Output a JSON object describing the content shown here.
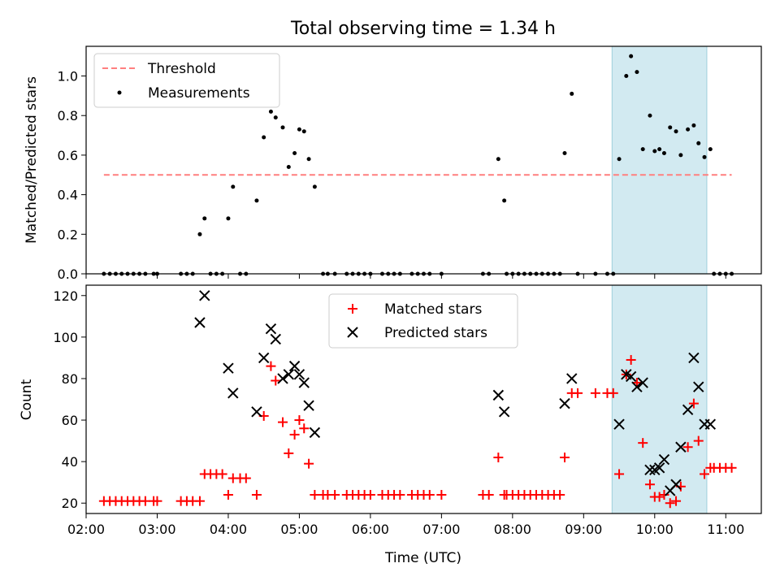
{
  "figure_title": "Total observing time = 1.34 h",
  "chart_data": [
    {
      "type": "scatter",
      "ylabel": "Matched/Predicted stars",
      "xlim": [
        "02:00",
        "11:30"
      ],
      "ylim": [
        0,
        1.15
      ],
      "yticks": [
        0.0,
        0.2,
        0.4,
        0.6,
        0.8,
        1.0
      ],
      "yticklabels": [
        "0.0",
        "0.2",
        "0.4",
        "0.6",
        "0.8",
        "1.0"
      ],
      "legend_position": "top-left",
      "shaded_span": [
        "09:24",
        "10:44"
      ],
      "shaded_color": "#add8e6",
      "threshold": {
        "name": "Threshold",
        "y": 0.5,
        "x": [
          "02:15",
          "11:05"
        ],
        "color": "#ff7f7f",
        "style": "dashed"
      },
      "series": [
        {
          "name": "Measurements",
          "color": "#000000",
          "marker": "dot",
          "points": [
            [
              "02:15",
              0
            ],
            [
              "02:20",
              0
            ],
            [
              "02:25",
              0
            ],
            [
              "02:30",
              0
            ],
            [
              "02:35",
              0
            ],
            [
              "02:40",
              0
            ],
            [
              "02:45",
              0
            ],
            [
              "02:50",
              0
            ],
            [
              "02:57",
              0
            ],
            [
              "03:00",
              0
            ],
            [
              "03:20",
              0
            ],
            [
              "03:25",
              0
            ],
            [
              "03:30",
              0
            ],
            [
              "03:36",
              0.2
            ],
            [
              "03:40",
              0.28
            ],
            [
              "03:45",
              0
            ],
            [
              "03:50",
              0
            ],
            [
              "03:55",
              0
            ],
            [
              "04:00",
              0.28
            ],
            [
              "04:04",
              0.44
            ],
            [
              "04:10",
              0
            ],
            [
              "04:15",
              0
            ],
            [
              "04:24",
              0.37
            ],
            [
              "04:30",
              0.69
            ],
            [
              "04:36",
              0.82
            ],
            [
              "04:40",
              0.79
            ],
            [
              "04:46",
              0.74
            ],
            [
              "04:51",
              0.54
            ],
            [
              "04:56",
              0.61
            ],
            [
              "05:00",
              0.73
            ],
            [
              "05:04",
              0.72
            ],
            [
              "05:08",
              0.58
            ],
            [
              "05:13",
              0.44
            ],
            [
              "05:20",
              0
            ],
            [
              "05:24",
              0
            ],
            [
              "05:30",
              0
            ],
            [
              "05:40",
              0
            ],
            [
              "05:45",
              0
            ],
            [
              "05:50",
              0
            ],
            [
              "05:55",
              0
            ],
            [
              "06:00",
              0
            ],
            [
              "06:10",
              0
            ],
            [
              "06:15",
              0
            ],
            [
              "06:20",
              0
            ],
            [
              "06:25",
              0
            ],
            [
              "06:35",
              0
            ],
            [
              "06:40",
              0
            ],
            [
              "06:45",
              0
            ],
            [
              "06:50",
              0
            ],
            [
              "07:00",
              0
            ],
            [
              "07:35",
              0
            ],
            [
              "07:40",
              0
            ],
            [
              "07:48",
              0.58
            ],
            [
              "07:53",
              0.37
            ],
            [
              "07:55",
              0
            ],
            [
              "08:00",
              0
            ],
            [
              "08:05",
              0
            ],
            [
              "08:10",
              0
            ],
            [
              "08:15",
              0
            ],
            [
              "08:20",
              0
            ],
            [
              "08:25",
              0
            ],
            [
              "08:30",
              0
            ],
            [
              "08:35",
              0
            ],
            [
              "08:40",
              0
            ],
            [
              "08:44",
              0.61
            ],
            [
              "08:50",
              0.91
            ],
            [
              "08:55",
              0
            ],
            [
              "09:10",
              0
            ],
            [
              "09:20",
              0
            ],
            [
              "09:25",
              0
            ],
            [
              "09:30",
              0.58
            ],
            [
              "09:36",
              1.0
            ],
            [
              "09:40",
              1.1
            ],
            [
              "09:45",
              1.02
            ],
            [
              "09:50",
              0.63
            ],
            [
              "09:56",
              0.8
            ],
            [
              "10:00",
              0.62
            ],
            [
              "10:04",
              0.63
            ],
            [
              "10:08",
              0.61
            ],
            [
              "10:13",
              0.74
            ],
            [
              "10:18",
              0.72
            ],
            [
              "10:22",
              0.6
            ],
            [
              "10:28",
              0.73
            ],
            [
              "10:33",
              0.75
            ],
            [
              "10:37",
              0.66
            ],
            [
              "10:42",
              0.59
            ],
            [
              "10:47",
              0.63
            ],
            [
              "10:50",
              0
            ],
            [
              "10:55",
              0
            ],
            [
              "11:00",
              0
            ],
            [
              "11:05",
              0
            ]
          ]
        }
      ]
    },
    {
      "type": "scatter",
      "ylabel": "Count",
      "xlabel": "Time (UTC)",
      "xlim": [
        "02:00",
        "11:30"
      ],
      "ylim": [
        15,
        125
      ],
      "xticks": [
        "02:00",
        "03:00",
        "04:00",
        "05:00",
        "06:00",
        "07:00",
        "08:00",
        "09:00",
        "10:00",
        "11:00"
      ],
      "yticks": [
        20,
        40,
        60,
        80,
        100,
        120
      ],
      "legend_position": "top-center",
      "shaded_span": [
        "09:24",
        "10:44"
      ],
      "shaded_color": "#add8e6",
      "series": [
        {
          "name": "Matched stars",
          "color": "#ff0000",
          "marker": "plus",
          "points": [
            [
              "02:15",
              21
            ],
            [
              "02:20",
              21
            ],
            [
              "02:25",
              21
            ],
            [
              "02:30",
              21
            ],
            [
              "02:35",
              21
            ],
            [
              "02:40",
              21
            ],
            [
              "02:45",
              21
            ],
            [
              "02:50",
              21
            ],
            [
              "02:57",
              21
            ],
            [
              "03:00",
              21
            ],
            [
              "03:20",
              21
            ],
            [
              "03:25",
              21
            ],
            [
              "03:30",
              21
            ],
            [
              "03:36",
              21
            ],
            [
              "03:40",
              34
            ],
            [
              "03:45",
              34
            ],
            [
              "03:50",
              34
            ],
            [
              "03:55",
              34
            ],
            [
              "04:00",
              24
            ],
            [
              "04:04",
              32
            ],
            [
              "04:10",
              32
            ],
            [
              "04:15",
              32
            ],
            [
              "04:24",
              24
            ],
            [
              "04:30",
              62
            ],
            [
              "04:36",
              86
            ],
            [
              "04:40",
              79
            ],
            [
              "04:46",
              59
            ],
            [
              "04:51",
              44
            ],
            [
              "04:56",
              53
            ],
            [
              "05:00",
              60
            ],
            [
              "05:04",
              56
            ],
            [
              "05:08",
              39
            ],
            [
              "05:13",
              24
            ],
            [
              "05:20",
              24
            ],
            [
              "05:24",
              24
            ],
            [
              "05:30",
              24
            ],
            [
              "05:40",
              24
            ],
            [
              "05:45",
              24
            ],
            [
              "05:50",
              24
            ],
            [
              "05:55",
              24
            ],
            [
              "06:00",
              24
            ],
            [
              "06:10",
              24
            ],
            [
              "06:15",
              24
            ],
            [
              "06:20",
              24
            ],
            [
              "06:25",
              24
            ],
            [
              "06:35",
              24
            ],
            [
              "06:40",
              24
            ],
            [
              "06:45",
              24
            ],
            [
              "06:50",
              24
            ],
            [
              "07:00",
              24
            ],
            [
              "07:35",
              24
            ],
            [
              "07:40",
              24
            ],
            [
              "07:48",
              42
            ],
            [
              "07:53",
              24
            ],
            [
              "07:55",
              24
            ],
            [
              "08:00",
              24
            ],
            [
              "08:05",
              24
            ],
            [
              "08:10",
              24
            ],
            [
              "08:15",
              24
            ],
            [
              "08:20",
              24
            ],
            [
              "08:25",
              24
            ],
            [
              "08:30",
              24
            ],
            [
              "08:35",
              24
            ],
            [
              "08:40",
              24
            ],
            [
              "08:44",
              42
            ],
            [
              "08:50",
              73
            ],
            [
              "08:55",
              73
            ],
            [
              "09:10",
              73
            ],
            [
              "09:20",
              73
            ],
            [
              "09:25",
              73
            ],
            [
              "09:30",
              34
            ],
            [
              "09:36",
              82
            ],
            [
              "09:40",
              89
            ],
            [
              "09:45",
              78
            ],
            [
              "09:50",
              49
            ],
            [
              "09:56",
              29
            ],
            [
              "10:00",
              23
            ],
            [
              "10:04",
              23
            ],
            [
              "10:08",
              24
            ],
            [
              "10:13",
              20
            ],
            [
              "10:18",
              21
            ],
            [
              "10:22",
              28
            ],
            [
              "10:28",
              47
            ],
            [
              "10:33",
              68
            ],
            [
              "10:37",
              50
            ],
            [
              "10:42",
              34
            ],
            [
              "10:47",
              37
            ],
            [
              "10:50",
              37
            ],
            [
              "10:55",
              37
            ],
            [
              "11:00",
              37
            ],
            [
              "11:05",
              37
            ]
          ]
        },
        {
          "name": "Predicted stars",
          "color": "#000000",
          "marker": "x",
          "points": [
            [
              "03:36",
              107
            ],
            [
              "03:40",
              120
            ],
            [
              "04:00",
              85
            ],
            [
              "04:04",
              73
            ],
            [
              "04:24",
              64
            ],
            [
              "04:30",
              90
            ],
            [
              "04:36",
              104
            ],
            [
              "04:40",
              99
            ],
            [
              "04:46",
              80
            ],
            [
              "04:51",
              82
            ],
            [
              "04:56",
              86
            ],
            [
              "05:00",
              82
            ],
            [
              "05:04",
              78
            ],
            [
              "05:08",
              67
            ],
            [
              "05:13",
              54
            ],
            [
              "07:48",
              72
            ],
            [
              "07:53",
              64
            ],
            [
              "08:44",
              68
            ],
            [
              "08:50",
              80
            ],
            [
              "09:30",
              58
            ],
            [
              "09:36",
              82
            ],
            [
              "09:40",
              81
            ],
            [
              "09:45",
              76
            ],
            [
              "09:50",
              78
            ],
            [
              "09:56",
              36
            ],
            [
              "10:00",
              36
            ],
            [
              "10:04",
              37
            ],
            [
              "10:08",
              41
            ],
            [
              "10:13",
              26
            ],
            [
              "10:18",
              29
            ],
            [
              "10:22",
              47
            ],
            [
              "10:28",
              65
            ],
            [
              "10:33",
              90
            ],
            [
              "10:37",
              76
            ],
            [
              "10:42",
              58
            ],
            [
              "10:47",
              58
            ]
          ]
        }
      ]
    }
  ]
}
